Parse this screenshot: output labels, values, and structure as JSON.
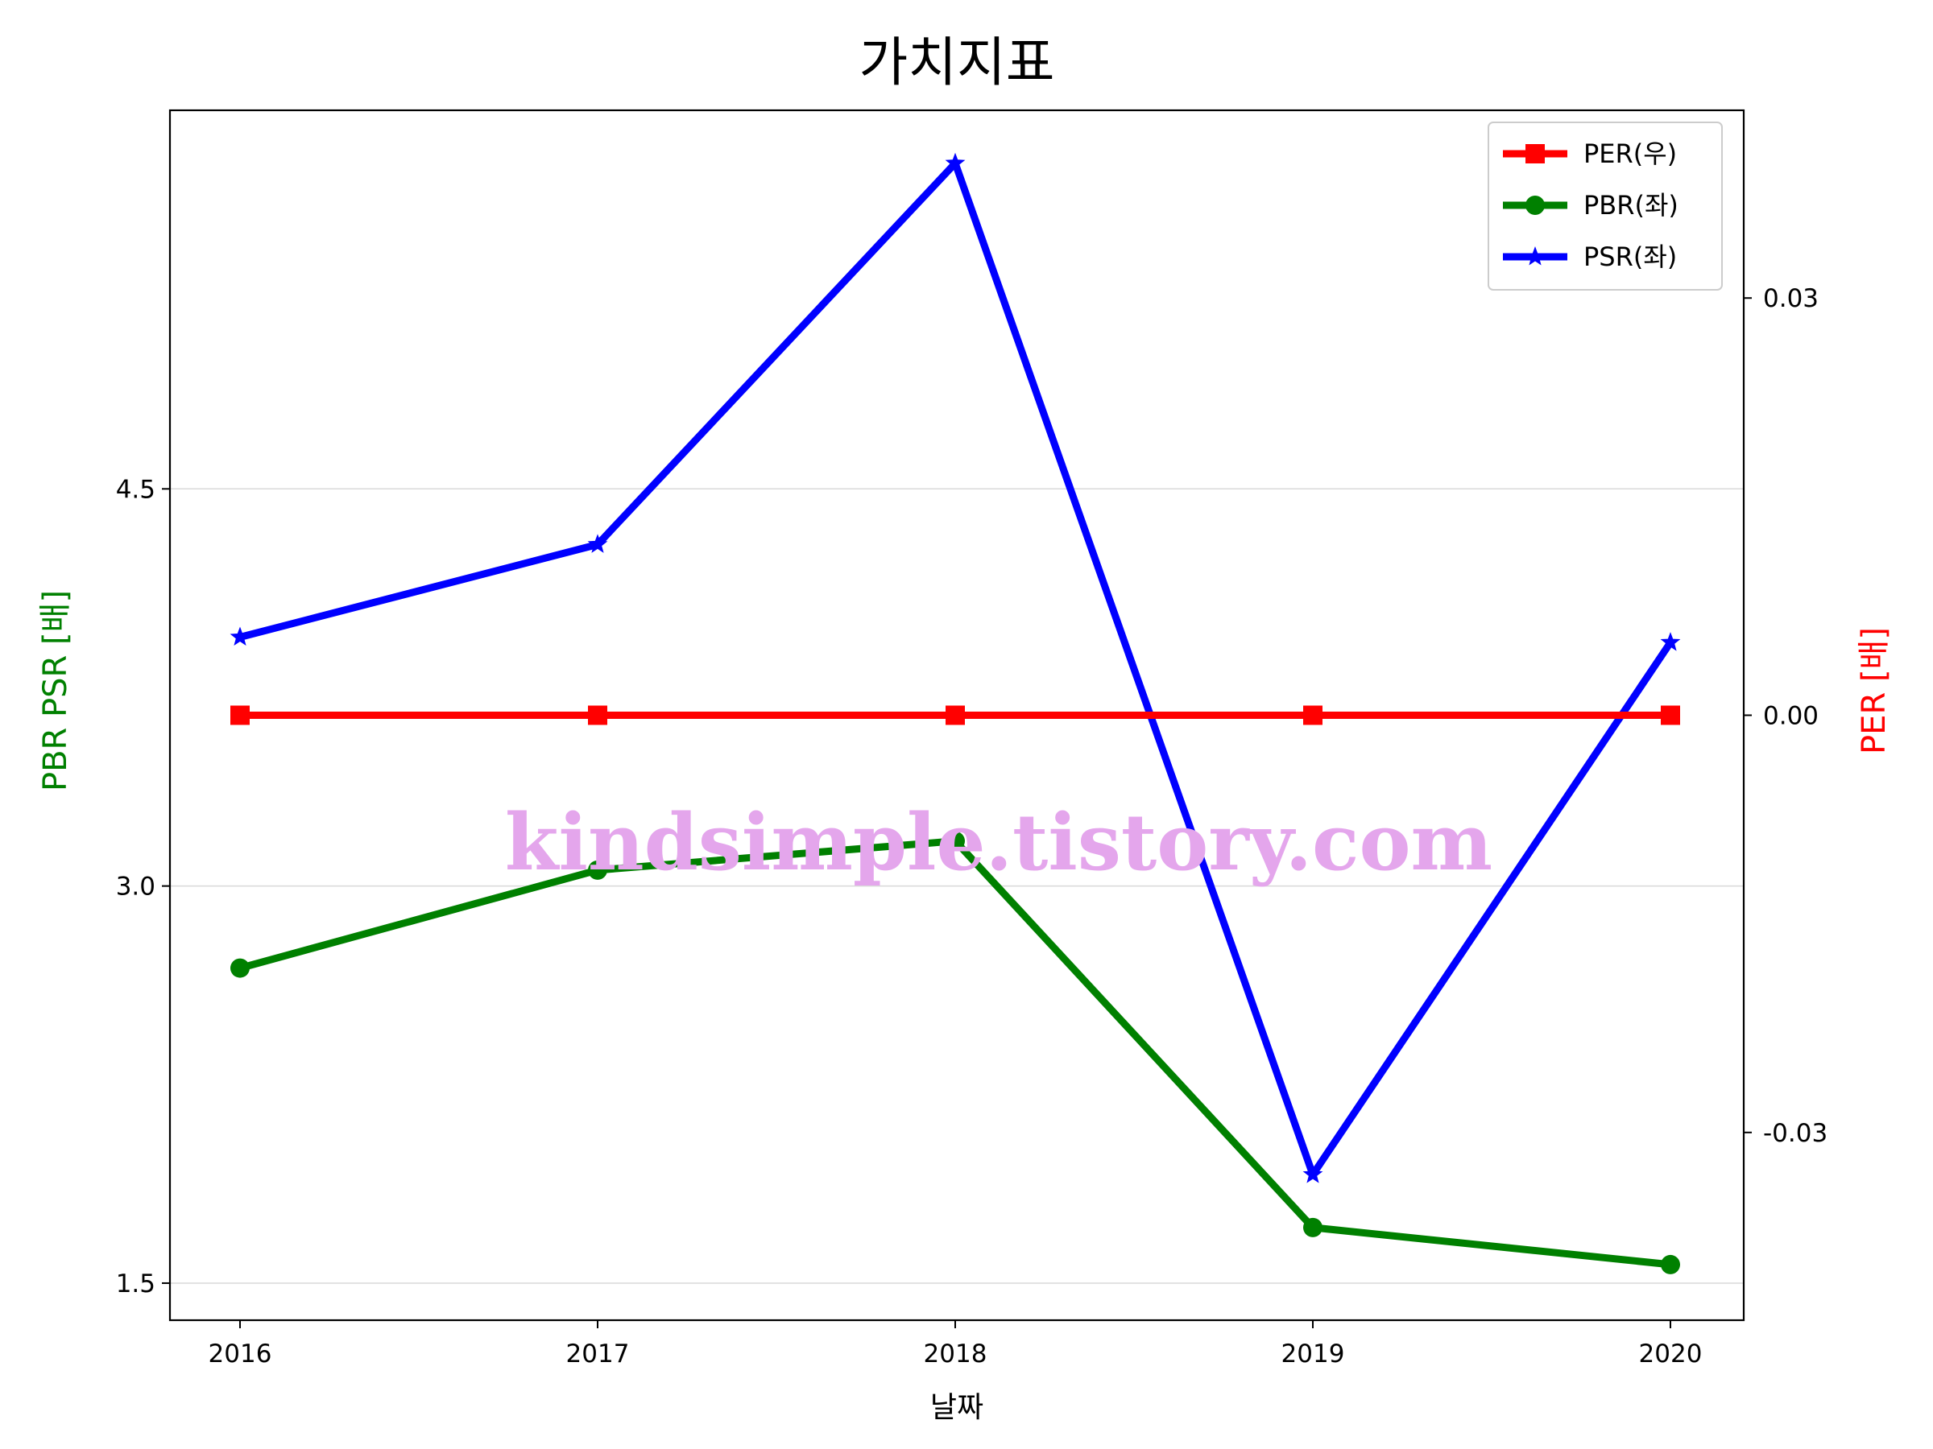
{
  "chart_data": {
    "type": "line",
    "title": "가치지표",
    "xlabel": "날짜",
    "ylabel_left": "PBR PSR [배]",
    "ylabel_right": "PER [배]",
    "ylabel_left_color": "#008000",
    "ylabel_right_color": "#ff0000",
    "x": [
      "2016",
      "2017",
      "2018",
      "2019",
      "2020"
    ],
    "ylim_left": [
      1.36,
      5.93
    ],
    "ylim_right": [
      -0.0435,
      0.0435
    ],
    "yticks_left": [
      "1.5",
      "3.0",
      "4.5"
    ],
    "yticks_right": [
      "-0.03",
      "0.00",
      "0.03"
    ],
    "grid": "horizontal",
    "legend_position": "top-right",
    "series": [
      {
        "name": "PER(우)",
        "axis": "right",
        "color": "#ff0000",
        "marker": "square",
        "values": [
          0,
          0,
          0,
          0,
          0
        ]
      },
      {
        "name": "PBR(좌)",
        "axis": "left",
        "color": "#008000",
        "marker": "circle",
        "values": [
          2.69,
          3.06,
          3.17,
          1.71,
          1.57
        ]
      },
      {
        "name": "PSR(좌)",
        "axis": "left",
        "color": "#0000ff",
        "marker": "star",
        "values": [
          3.94,
          4.29,
          5.73,
          1.91,
          3.92
        ]
      }
    ],
    "watermark": "kindsimple.tistory.com"
  }
}
